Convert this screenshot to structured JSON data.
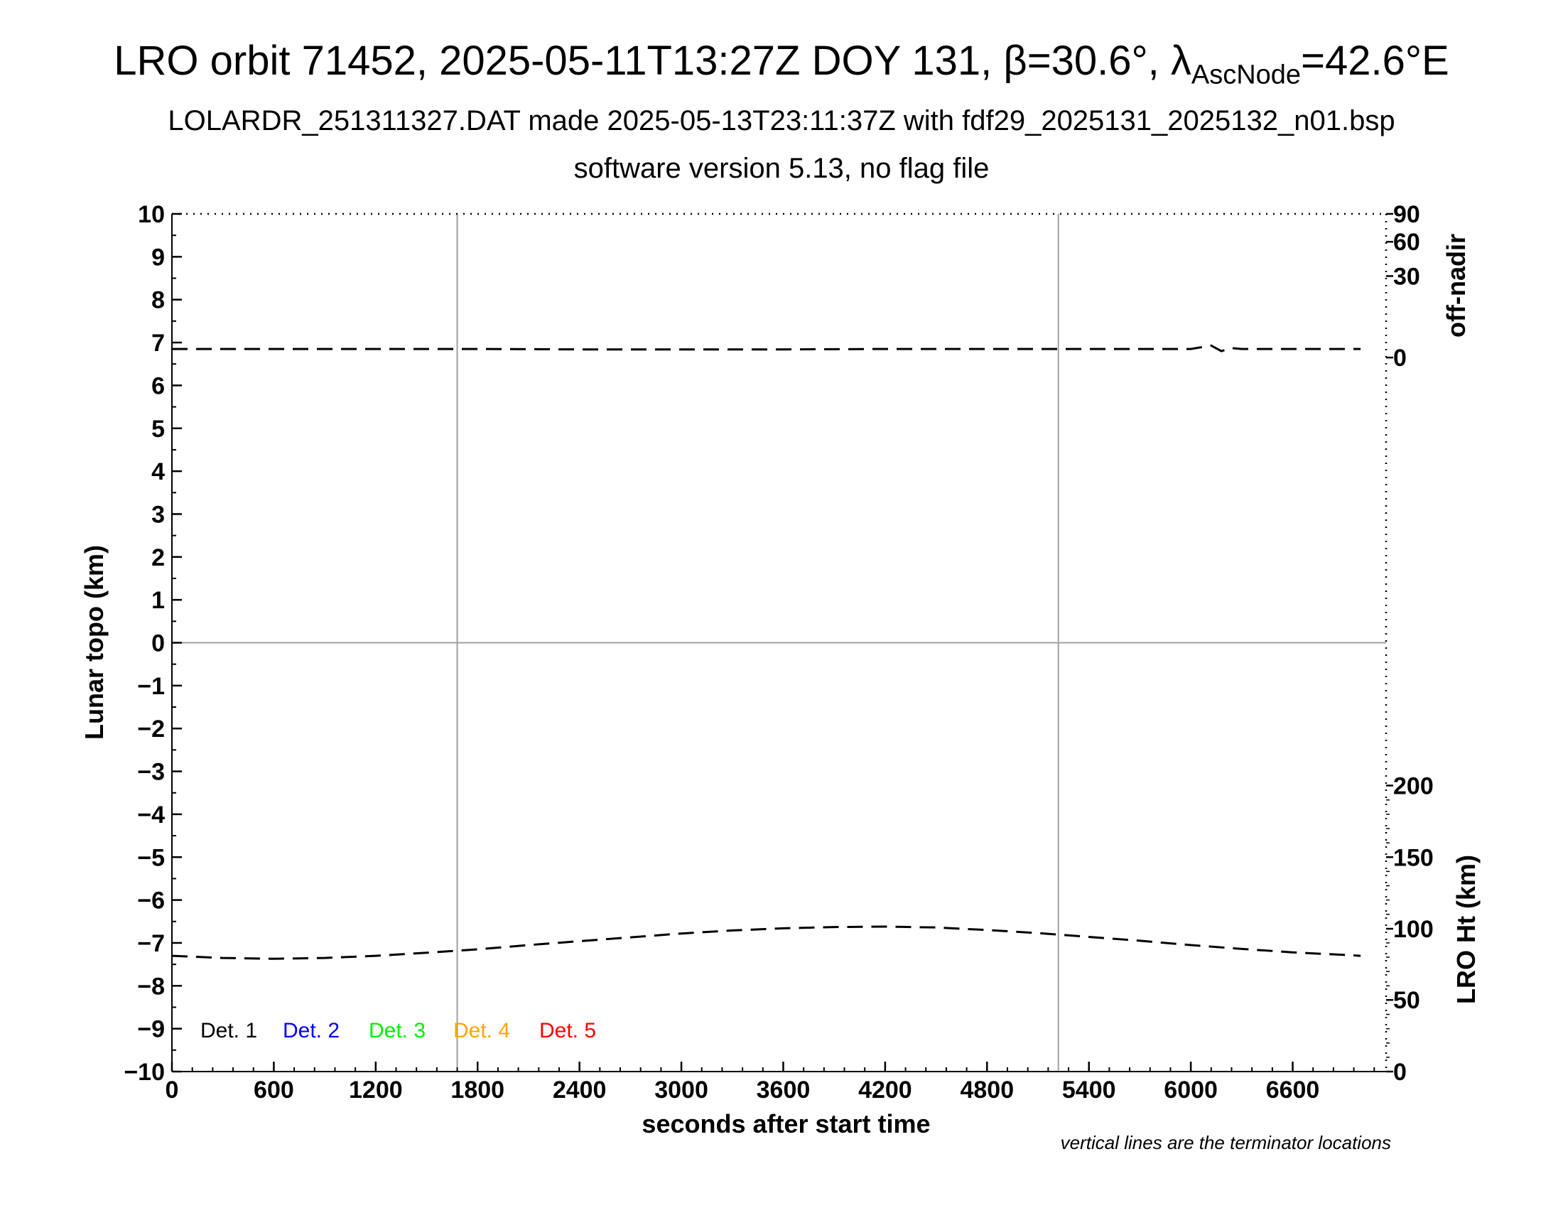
{
  "title": {
    "line1_prefix": "LRO orbit 71452, 2025-05-11T13:27Z DOY 131, β=30.6°, λ",
    "line1_sub": "AscNode",
    "line1_suffix": "=42.6°E",
    "line2": "LOLARDR_251311327.DAT made 2025-05-13T23:11:37Z with fdf29_2025131_2025132_n01.bsp",
    "line3": "software version 5.13, no flag file"
  },
  "chart_data": {
    "type": "line",
    "xlabel": "seconds after start time",
    "ylabel_left": "Lunar topo (km)",
    "ylabel_right_top": "off-nadir",
    "ylabel_right_bottom": "LRO Ht (km)",
    "xlim": [
      0,
      7150
    ],
    "ylim_left": [
      -10,
      10
    ],
    "x_ticks": [
      0,
      600,
      1200,
      1800,
      2400,
      3000,
      3600,
      4200,
      4800,
      5400,
      6000,
      6600
    ],
    "y_ticks_left": [
      10,
      9,
      8,
      7,
      6,
      5,
      4,
      3,
      2,
      1,
      0,
      -1,
      -2,
      -3,
      -4,
      -5,
      -6,
      -7,
      -8,
      -9,
      -10
    ],
    "y_tick_labels_left": [
      "10",
      "9",
      "8",
      "7",
      "6",
      "5",
      "4",
      "3",
      "2",
      "1",
      "0",
      "−1",
      "−2",
      "−3",
      "−4",
      "−5",
      "−6",
      "−7",
      "−8",
      "−9",
      "−10"
    ],
    "right_top_ticks": [
      {
        "label": "90",
        "y_left": 10.0
      },
      {
        "label": "60",
        "y_left": 9.35
      },
      {
        "label": "30",
        "y_left": 8.55
      },
      {
        "label": "0",
        "y_left": 6.65
      }
    ],
    "right_bottom_ticks": [
      {
        "label": "200",
        "y_left": -3.33
      },
      {
        "label": "150",
        "y_left": -5.0
      },
      {
        "label": "100",
        "y_left": -6.67
      },
      {
        "label": "50",
        "y_left": -8.33
      },
      {
        "label": "0",
        "y_left": -10.0
      }
    ],
    "terminator_x": [
      1680,
      5220
    ],
    "zero_line_y": 0,
    "series": [
      {
        "name": "off-nadir",
        "color": "#000000",
        "style": "dashed",
        "points": [
          [
            0,
            6.85
          ],
          [
            600,
            6.85
          ],
          [
            1200,
            6.85
          ],
          [
            1800,
            6.85
          ],
          [
            2400,
            6.84
          ],
          [
            3000,
            6.84
          ],
          [
            3600,
            6.84
          ],
          [
            4200,
            6.85
          ],
          [
            4800,
            6.85
          ],
          [
            5400,
            6.85
          ],
          [
            6000,
            6.85
          ],
          [
            6120,
            6.93
          ],
          [
            6180,
            6.8
          ],
          [
            6240,
            6.87
          ],
          [
            6300,
            6.85
          ],
          [
            6600,
            6.85
          ],
          [
            7000,
            6.85
          ]
        ]
      },
      {
        "name": "LRO Ht",
        "color": "#000000",
        "style": "dashed",
        "points": [
          [
            0,
            -7.3
          ],
          [
            300,
            -7.35
          ],
          [
            600,
            -7.37
          ],
          [
            900,
            -7.35
          ],
          [
            1200,
            -7.3
          ],
          [
            1500,
            -7.23
          ],
          [
            1800,
            -7.15
          ],
          [
            2100,
            -7.05
          ],
          [
            2400,
            -6.96
          ],
          [
            2700,
            -6.87
          ],
          [
            3000,
            -6.78
          ],
          [
            3300,
            -6.71
          ],
          [
            3600,
            -6.66
          ],
          [
            3900,
            -6.63
          ],
          [
            4200,
            -6.62
          ],
          [
            4500,
            -6.64
          ],
          [
            4800,
            -6.7
          ],
          [
            5100,
            -6.77
          ],
          [
            5400,
            -6.86
          ],
          [
            5700,
            -6.95
          ],
          [
            6000,
            -7.05
          ],
          [
            6300,
            -7.14
          ],
          [
            6600,
            -7.22
          ],
          [
            6900,
            -7.28
          ],
          [
            7000,
            -7.3
          ]
        ]
      }
    ],
    "legend": [
      {
        "label": "Det. 1",
        "color": "#000000"
      },
      {
        "label": "Det. 2",
        "color": "#0000ff"
      },
      {
        "label": "Det. 3",
        "color": "#00ee00"
      },
      {
        "label": "Det. 4",
        "color": "#ffa500"
      },
      {
        "label": "Det. 5",
        "color": "#ff0000"
      }
    ],
    "legend_placement": "bottom-left",
    "note": "vertical lines are the terminator locations"
  }
}
